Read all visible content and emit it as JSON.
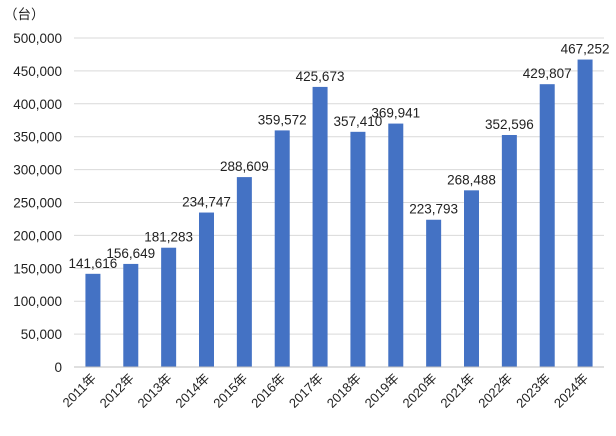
{
  "chart_data": {
    "type": "bar",
    "title": "",
    "xlabel": "",
    "ylabel": "",
    "unit": "（台）",
    "categories": [
      "2011年",
      "2012年",
      "2013年",
      "2014年",
      "2015年",
      "2016年",
      "2017年",
      "2018年",
      "2019年",
      "2020年",
      "2021年",
      "2022年",
      "2023年",
      "2024年"
    ],
    "values": [
      141616,
      156649,
      181283,
      234747,
      288609,
      359572,
      425673,
      357410,
      369941,
      223793,
      268488,
      352596,
      429807,
      467252
    ],
    "value_labels": [
      "141,616",
      "156,649",
      "181,283",
      "234,747",
      "288,609",
      "359,572",
      "425,673",
      "357,410",
      "369,941",
      "223,793",
      "268,488",
      "352,596",
      "429,807",
      "467,252"
    ],
    "ylim": [
      0,
      500000
    ],
    "yticks": [
      0,
      50000,
      100000,
      150000,
      200000,
      250000,
      300000,
      350000,
      400000,
      450000,
      500000
    ],
    "ytick_labels": [
      "0",
      "50,000",
      "100,000",
      "150,000",
      "200,000",
      "250,000",
      "300,000",
      "350,000",
      "400,000",
      "450,000",
      "500,000"
    ],
    "grid": true,
    "legend": "none",
    "colors": {
      "bar": "#4472C4",
      "grid": "#D9D9D9",
      "axis": "#BFBFBF",
      "text": "#222222"
    }
  }
}
